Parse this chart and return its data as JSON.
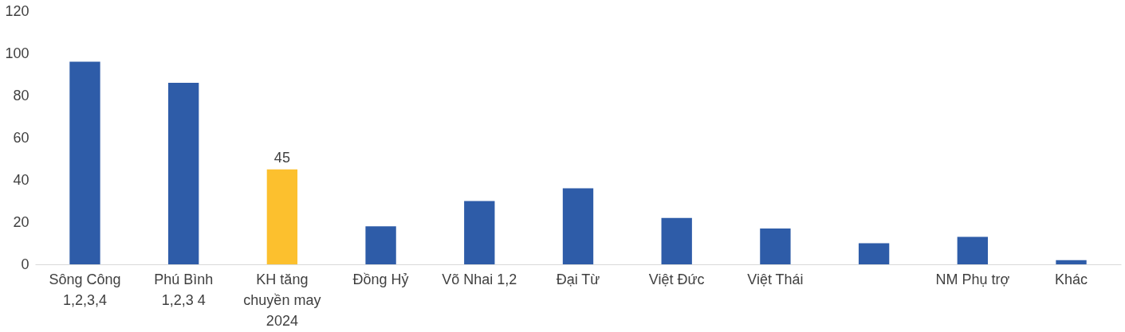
{
  "chart_data": {
    "type": "bar",
    "categories": [
      "Sông Công 1,2,3,4",
      "Phú Bình 1,2,3 4",
      "KH tăng chuyền may 2024",
      "Đồng Hỷ",
      "Võ Nhai 1,2",
      "Đại Từ",
      "Việt Đức",
      "Việt Thái",
      null,
      "NM Phụ trợ",
      "Khác"
    ],
    "values": [
      96,
      86,
      45,
      18,
      30,
      36,
      22,
      17,
      10,
      13,
      2
    ],
    "colors": [
      "#2e5ca8",
      "#2e5ca8",
      "#fcc02e",
      "#2e5ca8",
      "#2e5ca8",
      "#2e5ca8",
      "#2e5ca8",
      "#2e5ca8",
      "#2e5ca8",
      "#2e5ca8",
      "#2e5ca8"
    ],
    "value_labels": [
      null,
      null,
      "45",
      null,
      null,
      null,
      null,
      null,
      null,
      null,
      null
    ],
    "ylim": [
      0,
      120
    ],
    "yticks": [
      0,
      20,
      40,
      60,
      80,
      100,
      120
    ],
    "grid": false
  }
}
